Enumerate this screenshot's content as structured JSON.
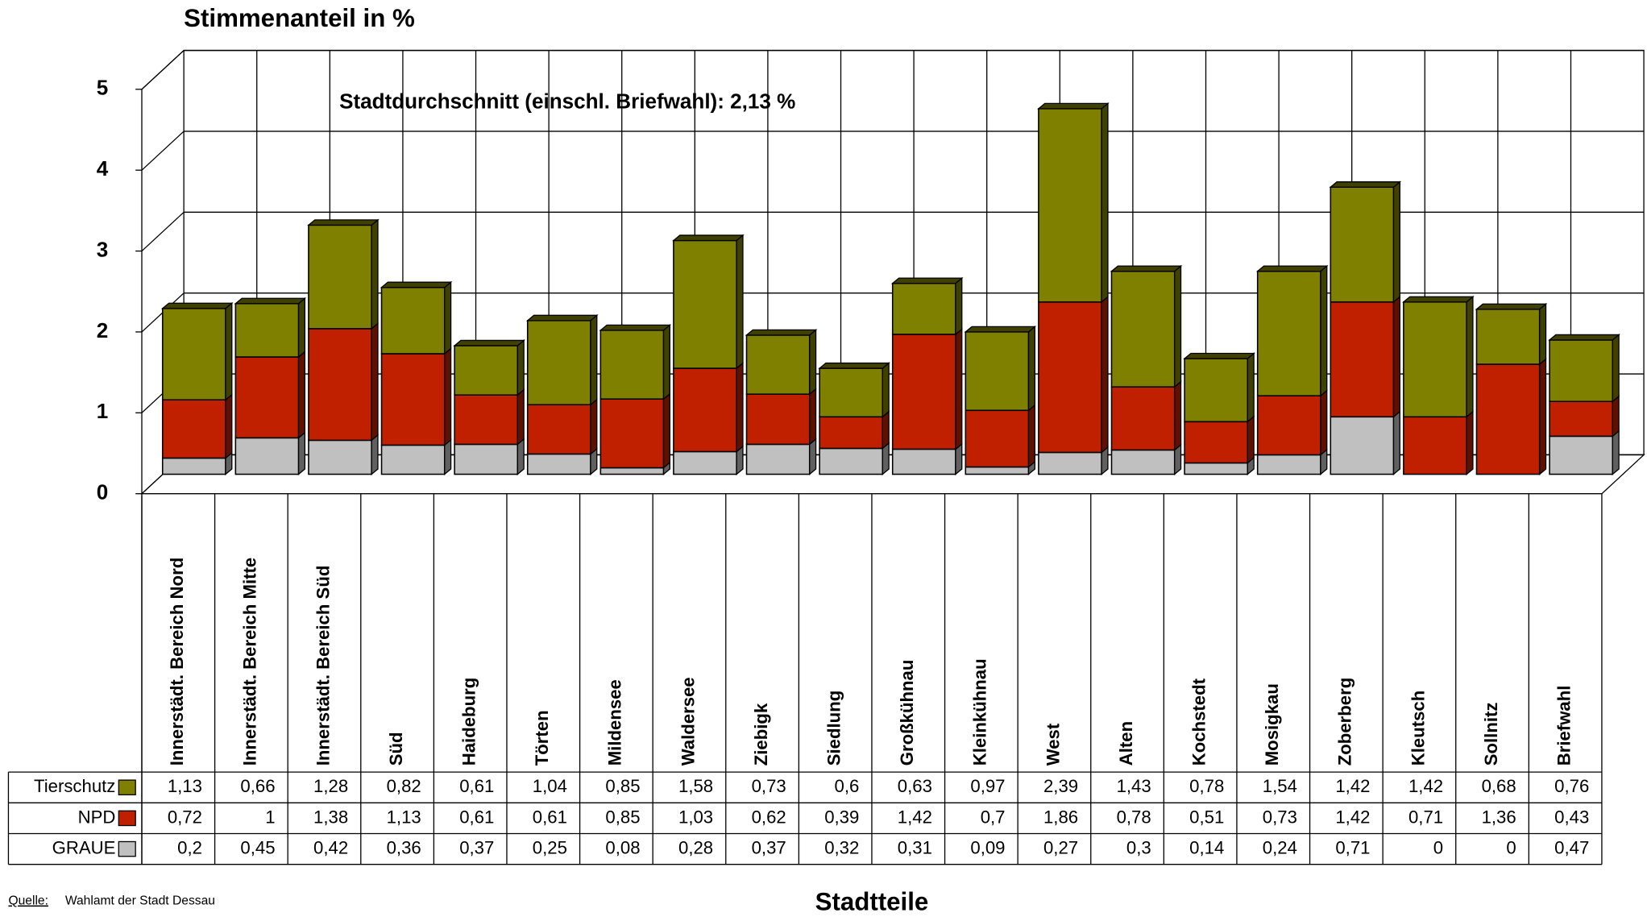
{
  "chart_data": {
    "type": "bar3d_stacked",
    "title": "Stimmenanteil in %",
    "annotation": "Stadtdurchschnitt (einschl. Briefwahl): 2,13 %",
    "x_label": "Stadtteile",
    "source_label": "Quelle:",
    "source": "Wahlamt der Stadt Dessau",
    "categories": [
      "Innerstädt. Bereich Nord",
      "Innerstädt. Bereich Mitte",
      "Innerstädt. Bereich Süd",
      "Süd",
      "Haideburg",
      "Törten",
      "Mildensee",
      "Waldersee",
      "Ziebigk",
      "Siedlung",
      "Großkühnau",
      "Kleinkühnau",
      "West",
      "Alten",
      "Kochstedt",
      "Mosigkau",
      "Zoberberg",
      "Kleutsch",
      "Sollnitz",
      "Briefwahl"
    ],
    "series": [
      {
        "name": "Tierschutz",
        "color": "#808000",
        "values": [
          1.13,
          0.66,
          1.28,
          0.82,
          0.61,
          1.04,
          0.85,
          1.58,
          0.73,
          0.6,
          0.63,
          0.97,
          2.39,
          1.43,
          0.78,
          1.54,
          1.42,
          1.42,
          0.68,
          0.76
        ],
        "value_labels": [
          "1,13",
          "0,66",
          "1,28",
          "0,82",
          "0,61",
          "1,04",
          "0,85",
          "1,58",
          "0,73",
          "0,6",
          "0,63",
          "0,97",
          "2,39",
          "1,43",
          "0,78",
          "1,54",
          "1,42",
          "1,42",
          "0,68",
          "0,76"
        ]
      },
      {
        "name": "NPD",
        "color": "#c02000",
        "values": [
          0.72,
          1,
          1.38,
          1.13,
          0.61,
          0.61,
          0.85,
          1.03,
          0.62,
          0.39,
          1.42,
          0.7,
          1.86,
          0.78,
          0.51,
          0.73,
          1.42,
          0.71,
          1.36,
          0.43
        ],
        "value_labels": [
          "0,72",
          "1",
          "1,38",
          "1,13",
          "0,61",
          "0,61",
          "0,85",
          "1,03",
          "0,62",
          "0,39",
          "1,42",
          "0,7",
          "1,86",
          "0,78",
          "0,51",
          "0,73",
          "1,42",
          "0,71",
          "1,36",
          "0,43"
        ]
      },
      {
        "name": "GRAUE",
        "color": "#c0c0c0",
        "values": [
          0.2,
          0.45,
          0.42,
          0.36,
          0.37,
          0.25,
          0.08,
          0.28,
          0.37,
          0.32,
          0.31,
          0.09,
          0.27,
          0.3,
          0.14,
          0.24,
          0.71,
          0,
          0,
          0.47
        ],
        "value_labels": [
          "0,2",
          "0,45",
          "0,42",
          "0,36",
          "0,37",
          "0,25",
          "0,08",
          "0,28",
          "0,37",
          "0,32",
          "0,31",
          "0,09",
          "0,27",
          "0,3",
          "0,14",
          "0,24",
          "0,71",
          "0",
          "0",
          "0,47"
        ]
      }
    ],
    "ylim": [
      0,
      5
    ],
    "yticks": [
      0,
      1,
      2,
      3,
      4,
      5
    ],
    "grid": true
  }
}
